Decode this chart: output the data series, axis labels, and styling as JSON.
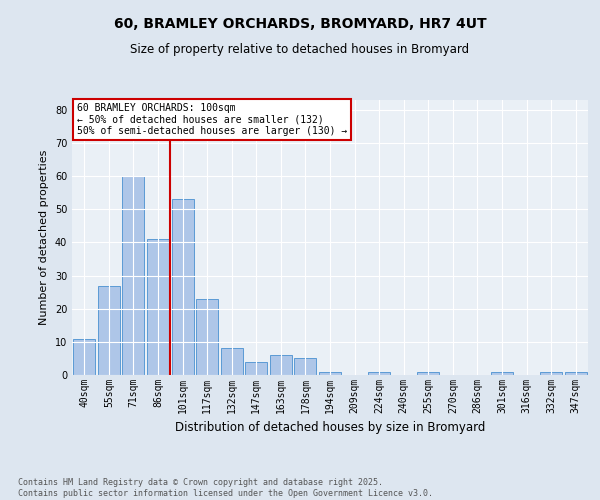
{
  "title1": "60, BRAMLEY ORCHARDS, BROMYARD, HR7 4UT",
  "title2": "Size of property relative to detached houses in Bromyard",
  "xlabel": "Distribution of detached houses by size in Bromyard",
  "ylabel": "Number of detached properties",
  "bar_labels": [
    "40sqm",
    "55sqm",
    "71sqm",
    "86sqm",
    "101sqm",
    "117sqm",
    "132sqm",
    "147sqm",
    "163sqm",
    "178sqm",
    "194sqm",
    "209sqm",
    "224sqm",
    "240sqm",
    "255sqm",
    "270sqm",
    "286sqm",
    "301sqm",
    "316sqm",
    "332sqm",
    "347sqm"
  ],
  "bar_values": [
    11,
    27,
    60,
    41,
    53,
    23,
    8,
    4,
    6,
    5,
    1,
    0,
    1,
    0,
    1,
    0,
    0,
    1,
    0,
    1,
    1
  ],
  "bar_color": "#aec6e8",
  "bar_edge_color": "#5b9bd5",
  "vline_x_index": 4,
  "vline_color": "#cc0000",
  "annotation_line1": "60 BRAMLEY ORCHARDS: 100sqm",
  "annotation_line2": "← 50% of detached houses are smaller (132)",
  "annotation_line3": "50% of semi-detached houses are larger (130) →",
  "annotation_box_color": "#cc0000",
  "ylim": [
    0,
    83
  ],
  "yticks": [
    0,
    10,
    20,
    30,
    40,
    50,
    60,
    70,
    80
  ],
  "footer_line1": "Contains HM Land Registry data © Crown copyright and database right 2025.",
  "footer_line2": "Contains public sector information licensed under the Open Government Licence v3.0.",
  "bg_color": "#dde6f0",
  "plot_bg_color": "#eaf0f6",
  "grid_color": "#ffffff",
  "title1_fontsize": 10,
  "title2_fontsize": 8.5,
  "ylabel_fontsize": 8,
  "xlabel_fontsize": 8.5,
  "tick_fontsize": 7,
  "footer_fontsize": 6,
  "annot_fontsize": 7
}
